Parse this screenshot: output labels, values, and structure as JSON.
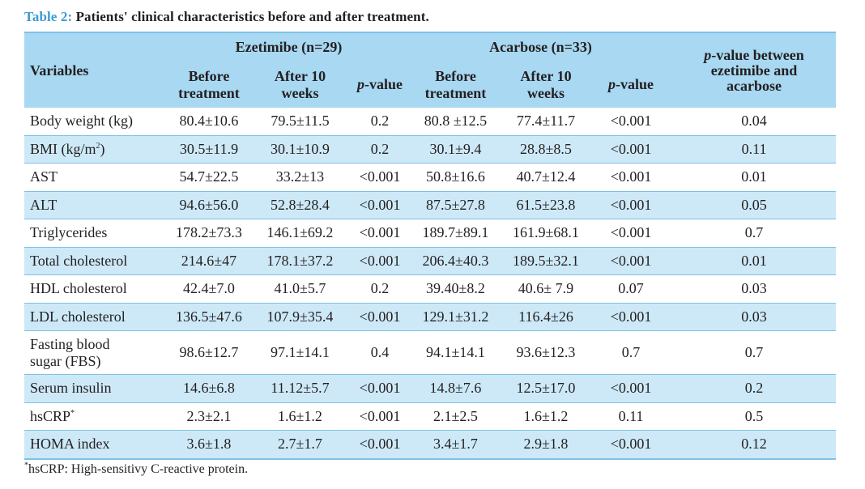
{
  "caption": {
    "label": "Table 2:",
    "text": "Patients' clinical characteristics before and after treatment."
  },
  "header": {
    "variables": "Variables",
    "group1": "Ezetimibe (n=29)",
    "group2": "Acarbose (n=33)",
    "before_line1": "Before",
    "before_line2": "treatment",
    "after_line1": "After 10",
    "after_line2": "weeks",
    "p_italic": "p",
    "p_suffix": "-value",
    "between_italic": "p",
    "between_line1_rest": "-value between",
    "between_line2": "ezetimibe and",
    "between_line3": "acarbose"
  },
  "rows": [
    {
      "var": "Body weight (kg)",
      "var_sup": "",
      "ez_before": "80.4±10.6",
      "ez_after": "79.5±11.5",
      "ez_p": "0.2",
      "ac_before": "80.8 ±12.5",
      "ac_after": "77.4±11.7",
      "ac_p": "<0.001",
      "between": "0.04"
    },
    {
      "var": "BMI (kg/m",
      "var_sup": "2",
      "var_tail": ")",
      "ez_before": "30.5±11.9",
      "ez_after": "30.1±10.9",
      "ez_p": "0.2",
      "ac_before": "30.1±9.4",
      "ac_after": "28.8±8.5",
      "ac_p": "<0.001",
      "between": "0.11"
    },
    {
      "var": "AST",
      "var_sup": "",
      "ez_before": "54.7±22.5",
      "ez_after": "33.2±13",
      "ez_p": "<0.001",
      "ac_before": "50.8±16.6",
      "ac_after": "40.7±12.4",
      "ac_p": "<0.001",
      "between": "0.01"
    },
    {
      "var": "ALT",
      "var_sup": "",
      "ez_before": "94.6±56.0",
      "ez_after": "52.8±28.4",
      "ez_p": "<0.001",
      "ac_before": "87.5±27.8",
      "ac_after": "61.5±23.8",
      "ac_p": "<0.001",
      "between": "0.05"
    },
    {
      "var": "Triglycerides",
      "var_sup": "",
      "ez_before": "178.2±73.3",
      "ez_after": "146.1±69.2",
      "ez_p": "<0.001",
      "ac_before": "189.7±89.1",
      "ac_after": "161.9±68.1",
      "ac_p": "<0.001",
      "between": "0.7"
    },
    {
      "var": "Total cholesterol",
      "var_sup": "",
      "ez_before": "214.6±47",
      "ez_after": "178.1±37.2",
      "ez_p": "<0.001",
      "ac_before": "206.4±40.3",
      "ac_after": "189.5±32.1",
      "ac_p": "<0.001",
      "between": "0.01"
    },
    {
      "var": "HDL cholesterol",
      "var_sup": "",
      "ez_before": "42.4±7.0",
      "ez_after": "41.0±5.7",
      "ez_p": "0.2",
      "ac_before": "39.40±8.2",
      "ac_after": "40.6± 7.9",
      "ac_p": "0.07",
      "between": "0.03"
    },
    {
      "var": "LDL cholesterol",
      "var_sup": "",
      "ez_before": "136.5±47.6",
      "ez_after": "107.9±35.4",
      "ez_p": "<0.001",
      "ac_before": "129.1±31.2",
      "ac_after": "116.4±26",
      "ac_p": "<0.001",
      "between": "0.03"
    },
    {
      "var": "Fasting blood",
      "var2": "sugar (FBS)",
      "var_sup": "",
      "ez_before": "98.6±12.7",
      "ez_after": "97.1±14.1",
      "ez_p": "0.4",
      "ac_before": "94.1±14.1",
      "ac_after": "93.6±12.3",
      "ac_p": "0.7",
      "between": "0.7"
    },
    {
      "var": "Serum insulin",
      "var_sup": "",
      "ez_before": "14.6±6.8",
      "ez_after": "11.12±5.7",
      "ez_p": "<0.001",
      "ac_before": "14.8±7.6",
      "ac_after": "12.5±17.0",
      "ac_p": "<0.001",
      "between": "0.2"
    },
    {
      "var": "hsCRP",
      "var_sup": "*",
      "ez_before": "2.3±2.1",
      "ez_after": "1.6±1.2",
      "ez_p": "<0.001",
      "ac_before": "2.1±2.5",
      "ac_after": "1.6±1.2",
      "ac_p": "0.11",
      "between": "0.5"
    },
    {
      "var": "HOMA index",
      "var_sup": "",
      "ez_before": "3.6±1.8",
      "ez_after": "2.7±1.7",
      "ez_p": "<0.001",
      "ac_before": "3.4±1.7",
      "ac_after": "2.9±1.8",
      "ac_p": "<0.001",
      "between": "0.12"
    }
  ],
  "footnote": {
    "mark": "*",
    "text": "hsCRP: High-sensitivy C-reactive protein."
  }
}
